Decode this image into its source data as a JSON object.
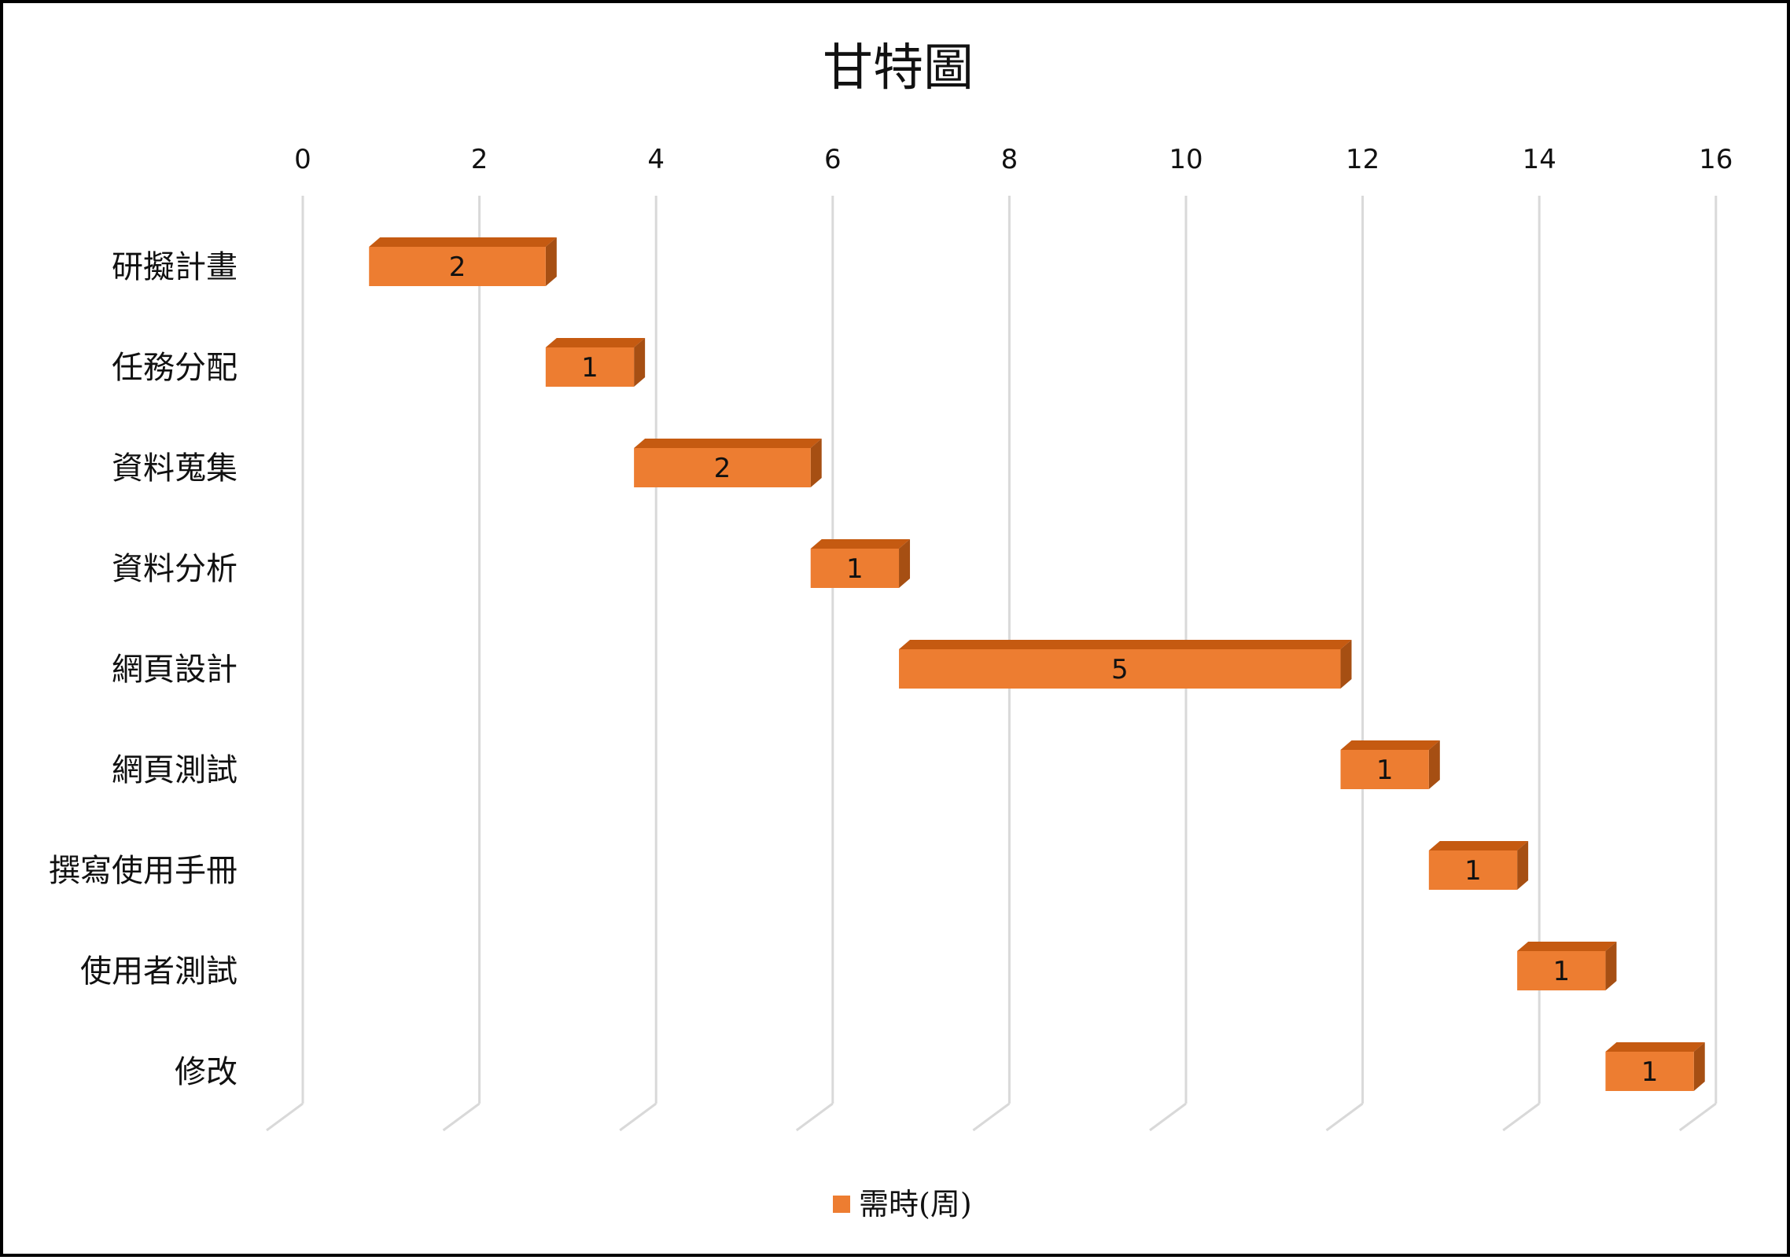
{
  "chart_data": {
    "type": "bar",
    "orientation": "horizontal",
    "style": "3d-stacked-gantt",
    "title": "甘特圖",
    "categories": [
      "研擬計畫",
      "任務分配",
      "資料蒐集",
      "資料分析",
      "網頁設計",
      "網頁測試",
      "撰寫使用手冊",
      "使用者測試",
      "修改"
    ],
    "start": [
      0.75,
      2.75,
      3.75,
      5.75,
      6.75,
      11.75,
      12.75,
      13.75,
      14.75
    ],
    "series": [
      {
        "name": "需時(周)",
        "values": [
          2,
          1,
          2,
          1,
          5,
          1,
          1,
          1,
          1
        ],
        "color": "#ED7D31",
        "top_color": "#C55A11",
        "side_color": "#A64F13"
      }
    ],
    "x_ticks": [
      "0",
      "2",
      "4",
      "6",
      "8",
      "10",
      "12",
      "14",
      "16"
    ],
    "xlim": [
      0,
      16
    ],
    "x_axis_position": "top",
    "grid": true,
    "grid_color": "#D9D9D9",
    "data_labels": true,
    "legend_position": "bottom"
  }
}
